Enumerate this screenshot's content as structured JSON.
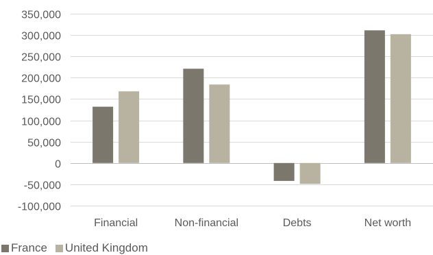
{
  "chart_data": {
    "type": "bar",
    "categories": [
      "Financial",
      "Non-financial",
      "Debts",
      "Net worth"
    ],
    "series": [
      {
        "name": "France",
        "values": [
          132000,
          221000,
          -42000,
          311000
        ],
        "color": "#7b776d"
      },
      {
        "name": "United Kingdom",
        "values": [
          168000,
          184000,
          -49000,
          302000
        ],
        "color": "#b8b2a1"
      }
    ],
    "ylim": [
      -100000,
      350000
    ],
    "yticks": [
      {
        "value": 350000,
        "label": "350,000"
      },
      {
        "value": 300000,
        "label": "300,000"
      },
      {
        "value": 250000,
        "label": "250,000"
      },
      {
        "value": 200000,
        "label": "200,000"
      },
      {
        "value": 150000,
        "label": "150,000"
      },
      {
        "value": 100000,
        "label": "100,000"
      },
      {
        "value": 50000,
        "label": "50,000"
      },
      {
        "value": 0,
        "label": "0"
      },
      {
        "value": -50000,
        "label": "-50,000"
      },
      {
        "value": -100000,
        "label": "-100,000"
      }
    ],
    "grid": true,
    "gridline_color": "#d9d9d9",
    "legend_position": "bottom-left",
    "title": "",
    "xlabel": "",
    "ylabel": ""
  }
}
